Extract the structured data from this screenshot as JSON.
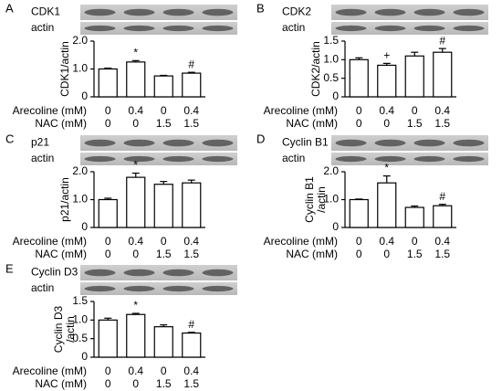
{
  "chart_data": [
    {
      "type": "bar",
      "panel": "A",
      "blot_labels": [
        "CDK1",
        "actin"
      ],
      "y_label": [
        "CDK1/actin"
      ],
      "ylim": [
        0,
        2
      ],
      "yticks": [
        0,
        {
          "value": 1,
          "label": "1.0"
        },
        {
          "value": 2,
          "label": "2.0"
        }
      ],
      "values": [
        1.0,
        1.25,
        0.75,
        0.85
      ],
      "errors": [
        0.03,
        0.05,
        0.02,
        0.03
      ],
      "annotations": [
        null,
        "*",
        null,
        "#"
      ],
      "row_labels": [
        "Arecoline (mM)",
        "NAC (mM)"
      ],
      "rows": [
        [
          0,
          0.4,
          0,
          0.4
        ],
        [
          0,
          0,
          1.5,
          1.5
        ]
      ]
    },
    {
      "type": "bar",
      "panel": "B",
      "blot_labels": [
        "CDK2",
        "actin"
      ],
      "y_label": [
        "CDK2/actin"
      ],
      "ylim": [
        0,
        1.5
      ],
      "yticks": [
        0,
        0.5,
        {
          "value": 1,
          "label": "1.0"
        },
        1.5
      ],
      "values": [
        1.0,
        0.85,
        1.1,
        1.2
      ],
      "errors": [
        0.05,
        0.05,
        0.1,
        0.1
      ],
      "annotations": [
        null,
        "+",
        null,
        "#"
      ],
      "row_labels": [
        "Arecoline (mM)",
        "NAC (mM)"
      ],
      "rows": [
        [
          0,
          0.4,
          0,
          0.4
        ],
        [
          0,
          0,
          1.5,
          1.5
        ]
      ]
    },
    {
      "type": "bar",
      "panel": "C",
      "blot_labels": [
        "p21",
        "actin"
      ],
      "y_label": [
        "p21/actin"
      ],
      "ylim": [
        0,
        2
      ],
      "yticks": [
        0,
        {
          "value": 1,
          "label": "1.0"
        },
        {
          "value": 2,
          "label": "2.0"
        }
      ],
      "values": [
        1.0,
        1.8,
        1.55,
        1.6
      ],
      "errors": [
        0.05,
        0.15,
        0.1,
        0.1
      ],
      "annotations": [
        null,
        "*",
        null,
        null
      ],
      "row_labels": [
        "Arecoline (mM)",
        "NAC (mM)"
      ],
      "rows": [
        [
          0,
          0.4,
          0,
          0.4
        ],
        [
          0,
          0,
          1.5,
          1.5
        ]
      ]
    },
    {
      "type": "bar",
      "panel": "D",
      "blot_labels": [
        "Cyclin B1",
        "actin"
      ],
      "y_label": [
        "Cyclin B1",
        "/actin"
      ],
      "ylim": [
        0,
        2
      ],
      "yticks": [
        0,
        {
          "value": 1,
          "label": "1.0"
        },
        {
          "value": 2,
          "label": "2.0"
        }
      ],
      "values": [
        1.0,
        1.6,
        0.72,
        0.78
      ],
      "errors": [
        0.02,
        0.25,
        0.05,
        0.05
      ],
      "annotations": [
        null,
        "*",
        null,
        "#"
      ],
      "row_labels": [
        "Arecoline (mM)",
        "NAC (mM)"
      ],
      "rows": [
        [
          0,
          0.4,
          0,
          0.4
        ],
        [
          0,
          0,
          1.5,
          1.5
        ]
      ]
    },
    {
      "type": "bar",
      "panel": "E",
      "blot_labels": [
        "Cyclin D3",
        "actin"
      ],
      "y_label": [
        "Cyclin D3",
        "/actin"
      ],
      "ylim": [
        0,
        1.5
      ],
      "yticks": [
        0,
        0.5,
        {
          "value": 1,
          "label": "1.0"
        },
        1.5
      ],
      "values": [
        1.0,
        1.15,
        0.82,
        0.65
      ],
      "errors": [
        0.05,
        0.03,
        0.05,
        0.02
      ],
      "annotations": [
        null,
        "*",
        null,
        "#"
      ],
      "row_labels": [
        "Arecoline (mM)",
        "NAC (mM)"
      ],
      "rows": [
        [
          0,
          0.4,
          0,
          0.4
        ],
        [
          0,
          0,
          1.5,
          1.5
        ]
      ]
    }
  ]
}
